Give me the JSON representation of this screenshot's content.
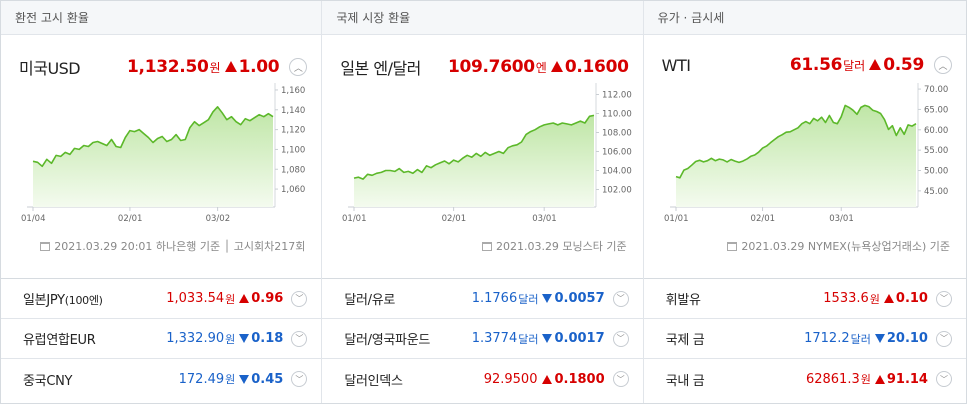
{
  "colors": {
    "up": "#d60000",
    "down": "#1a62c9",
    "line": "#5cb82a",
    "fill_top": "#bfe6a6",
    "fill_bottom": "#f4fbef"
  },
  "columns": [
    {
      "header": "환전 고시 환율",
      "main": {
        "name": "미국USD",
        "price": "1,132.50",
        "unit": "원",
        "change": "1.00",
        "direction": "up",
        "source": "2021.03.29 20:01 하나은행 기준 │ 고시회차217회"
      },
      "rows": [
        {
          "name": "일본JPY",
          "sub": "(100엔)",
          "price": "1,033.54",
          "unit": "원",
          "change": "0.96",
          "direction": "up"
        },
        {
          "name": "유럽연합EUR",
          "sub": "",
          "price": "1,332.90",
          "unit": "원",
          "change": "0.18",
          "direction": "down"
        },
        {
          "name": "중국CNY",
          "sub": "",
          "price": "172.49",
          "unit": "원",
          "change": "0.45",
          "direction": "down"
        }
      ]
    },
    {
      "header": "국제 시장 환율",
      "main": {
        "name": "일본 엔/달러",
        "price": "109.7600",
        "unit": "엔",
        "change": "0.1600",
        "direction": "up",
        "source": "2021.03.29 모닝스타 기준"
      },
      "rows": [
        {
          "name": "달러/유로",
          "sub": "",
          "price": "1.1766",
          "unit": "달러",
          "change": "0.0057",
          "direction": "down"
        },
        {
          "name": "달러/영국파운드",
          "sub": "",
          "price": "1.3774",
          "unit": "달러",
          "change": "0.0017",
          "direction": "down"
        },
        {
          "name": "달러인덱스",
          "sub": "",
          "price": "92.9500",
          "unit": "",
          "change": "0.1800",
          "direction": "up"
        }
      ]
    },
    {
      "header": "유가 · 금시세",
      "main": {
        "name": "WTI",
        "price": "61.56",
        "unit": "달러",
        "change": "0.59",
        "direction": "up",
        "source": "2021.03.29 NYMEX(뉴욕상업거래소) 기준"
      },
      "rows": [
        {
          "name": "휘발유",
          "sub": "",
          "price": "1533.6",
          "unit": "원",
          "change": "0.10",
          "direction": "up"
        },
        {
          "name": "국제 금",
          "sub": "",
          "price": "1712.2",
          "unit": "달러",
          "change": "20.10",
          "direction": "down"
        },
        {
          "name": "국내 금",
          "sub": "",
          "price": "62861.3",
          "unit": "원",
          "change": "91.14",
          "direction": "up"
        }
      ]
    }
  ],
  "chart_data": [
    {
      "type": "area",
      "ylim": [
        1050,
        1165
      ],
      "yticks": [
        "1,160",
        "1,140",
        "1,120",
        "1,100",
        "1,080",
        "1,060"
      ],
      "ytick_values": [
        1160,
        1140,
        1120,
        1100,
        1080,
        1060
      ],
      "xticks": [
        "01/04",
        "02/01",
        "03/02"
      ],
      "xtick_index": [
        0,
        21,
        40
      ],
      "values": [
        1088,
        1087,
        1083,
        1090,
        1086,
        1094,
        1093,
        1097,
        1095,
        1101,
        1100,
        1104,
        1103,
        1107,
        1108,
        1106,
        1104,
        1110,
        1103,
        1102,
        1112,
        1119,
        1118,
        1120,
        1116,
        1112,
        1107,
        1111,
        1113,
        1108,
        1110,
        1115,
        1109,
        1110,
        1122,
        1128,
        1124,
        1127,
        1130,
        1138,
        1143,
        1137,
        1130,
        1133,
        1128,
        1125,
        1131,
        1129,
        1132,
        1135,
        1133,
        1136,
        1133
      ]
    },
    {
      "type": "area",
      "ylim": [
        101,
        113
      ],
      "yticks": [
        "112.00",
        "110.00",
        "108.00",
        "106.00",
        "104.00",
        "102.00"
      ],
      "ytick_values": [
        112,
        110,
        108,
        106,
        104,
        102
      ],
      "xticks": [
        "01/01",
        "02/01",
        "03/01"
      ],
      "xtick_index": [
        0,
        22,
        42
      ],
      "values": [
        103.2,
        103.3,
        103.1,
        103.6,
        103.5,
        103.7,
        103.8,
        104.0,
        104.0,
        103.9,
        104.2,
        103.8,
        103.9,
        103.7,
        104.1,
        103.8,
        104.5,
        104.3,
        104.6,
        104.8,
        105.0,
        104.7,
        105.1,
        104.9,
        105.3,
        105.6,
        105.4,
        105.8,
        105.5,
        105.9,
        105.6,
        105.8,
        106.0,
        105.8,
        106.4,
        106.6,
        106.7,
        107.0,
        107.8,
        108.1,
        108.3,
        108.6,
        108.8,
        108.9,
        109.0,
        108.8,
        109.0,
        108.9,
        108.8,
        109.0,
        109.2,
        109.0,
        109.7,
        109.8
      ]
    },
    {
      "type": "area",
      "ylim": [
        43,
        71
      ],
      "yticks": [
        "70.00",
        "65.00",
        "60.00",
        "55.00",
        "50.00",
        "45.00"
      ],
      "ytick_values": [
        70,
        65,
        60,
        55,
        50,
        45
      ],
      "xticks": [
        "01/01",
        "02/01",
        "03/01"
      ],
      "xtick_index": [
        0,
        22,
        42
      ],
      "values": [
        48.5,
        48.2,
        50.1,
        50.5,
        51.3,
        52.2,
        52.5,
        52.1,
        52.4,
        53.0,
        52.4,
        52.8,
        52.6,
        52.1,
        52.7,
        52.3,
        52.0,
        52.3,
        52.8,
        53.5,
        53.8,
        54.5,
        55.5,
        56.0,
        56.8,
        57.6,
        58.3,
        58.8,
        59.4,
        59.5,
        60.0,
        60.5,
        61.5,
        62.0,
        61.5,
        62.8,
        62.2,
        63.1,
        61.8,
        63.5,
        61.8,
        61.5,
        63.2,
        66.0,
        65.5,
        64.8,
        63.8,
        65.5,
        66.0,
        65.7,
        64.8,
        64.5,
        64.0,
        62.5,
        60.1,
        61.0,
        58.6,
        60.5,
        58.9,
        61.2,
        60.9,
        61.5
      ]
    }
  ]
}
